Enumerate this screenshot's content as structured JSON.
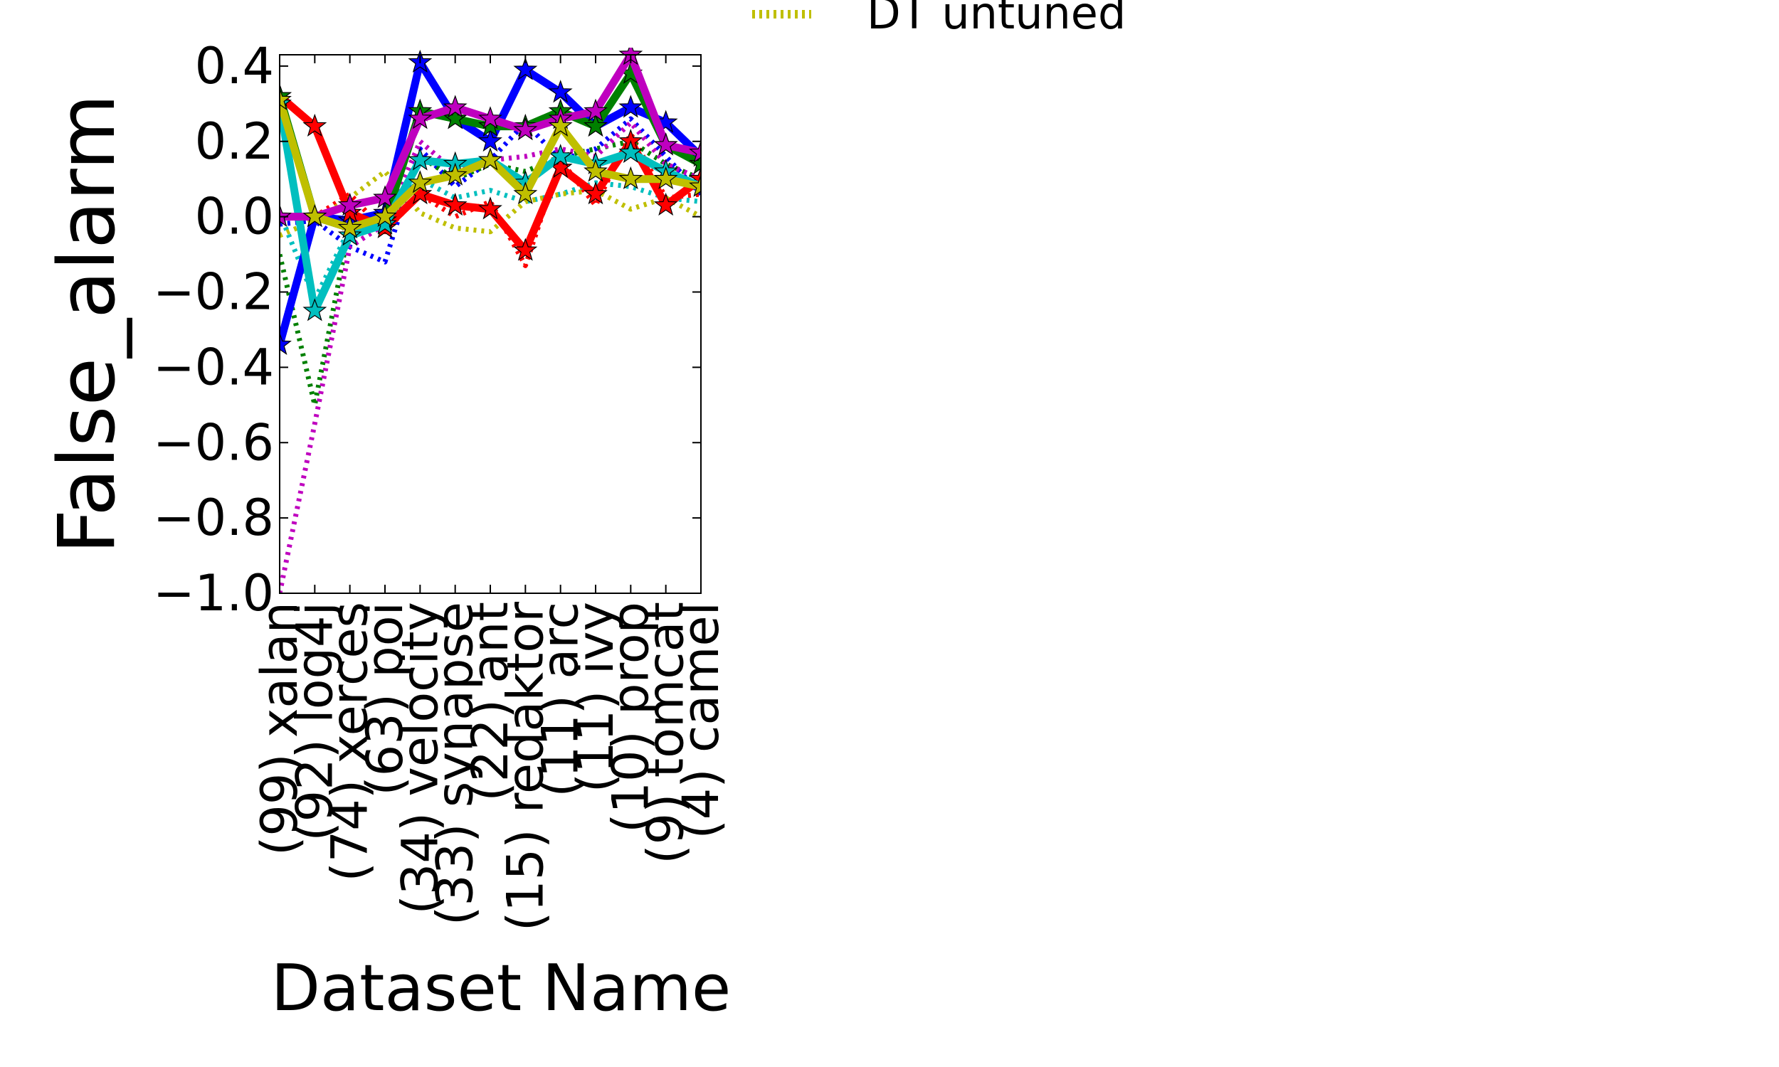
{
  "chart_data": {
    "type": "line",
    "xlabel": "Dataset Name",
    "ylabel": "False_alarm",
    "ylim": [
      -1.0,
      0.43
    ],
    "yticks": [
      0.4,
      0.2,
      0.0,
      -0.2,
      -0.4,
      -0.6,
      -0.8,
      -1.0
    ],
    "ytick_labels": [
      "0.4",
      "0.2",
      "0.0",
      "−0.2",
      "−0.4",
      "−0.6",
      "−0.8",
      "−1.0"
    ],
    "categories": [
      "(99) xalan",
      "(92) log4j",
      "(74) xerces",
      "(63) poi",
      "(34) velocity",
      "(33) synapse",
      "(22) ant",
      "(15) redaktor",
      "(11) arc",
      "(11) ivy",
      "(10) prop",
      "(9) tomcat",
      "(4) camel"
    ],
    "grid": false,
    "legend": {
      "position": "top-right, partially clipped above the figure",
      "visible_entries": [
        "DT untuned"
      ]
    },
    "series": [
      {
        "name": "",
        "color": "#0000ff",
        "style": "solid",
        "marker": true,
        "values": [
          -0.34,
          0.0,
          -0.01,
          0.01,
          0.41,
          0.26,
          0.2,
          0.39,
          0.33,
          0.24,
          0.29,
          0.25,
          0.16
        ]
      },
      {
        "name": "",
        "color": "#0000ff",
        "style": "dotted",
        "marker": false,
        "values": [
          -0.02,
          -0.01,
          -0.08,
          -0.12,
          0.18,
          0.08,
          0.15,
          0.25,
          0.15,
          0.18,
          0.26,
          0.16,
          0.06
        ]
      },
      {
        "name": "",
        "color": "#ff0000",
        "style": "solid",
        "marker": true,
        "values": [
          0.32,
          0.24,
          0.01,
          -0.03,
          0.06,
          0.03,
          0.02,
          -0.09,
          0.13,
          0.06,
          0.2,
          0.03,
          0.1
        ]
      },
      {
        "name": "",
        "color": "#ff0000",
        "style": "dotted",
        "marker": false,
        "values": [
          0.3,
          0.0,
          0.06,
          -0.04,
          0.06,
          0.0,
          0.04,
          -0.13,
          0.15,
          0.03,
          0.22,
          0.05,
          0.06
        ]
      },
      {
        "name": "",
        "color": "#008000",
        "style": "solid",
        "marker": true,
        "values": [
          0.32,
          0.0,
          -0.03,
          -0.01,
          0.28,
          0.26,
          0.24,
          0.24,
          0.28,
          0.24,
          0.38,
          0.19,
          0.14
        ]
      },
      {
        "name": "",
        "color": "#008000",
        "style": "dotted",
        "marker": false,
        "values": [
          -0.1,
          -0.5,
          -0.02,
          -0.04,
          0.16,
          0.1,
          0.14,
          0.12,
          0.16,
          0.18,
          0.2,
          0.14,
          0.1
        ]
      },
      {
        "name": "",
        "color": "#00bfbf",
        "style": "solid",
        "marker": true,
        "values": [
          0.3,
          -0.25,
          -0.05,
          -0.02,
          0.15,
          0.14,
          0.15,
          0.09,
          0.16,
          0.14,
          0.17,
          0.12,
          0.08
        ]
      },
      {
        "name": "",
        "color": "#00bfbf",
        "style": "dotted",
        "marker": false,
        "values": [
          0.01,
          -0.22,
          -0.03,
          0.0,
          0.1,
          0.05,
          0.07,
          0.04,
          0.06,
          0.09,
          0.08,
          0.05,
          0.04
        ]
      },
      {
        "name": "",
        "color": "#bf00bf",
        "style": "solid",
        "marker": true,
        "values": [
          0.0,
          0.0,
          0.03,
          0.05,
          0.26,
          0.29,
          0.26,
          0.23,
          0.26,
          0.28,
          0.43,
          0.19,
          0.17
        ]
      },
      {
        "name": "",
        "color": "#bf00bf",
        "style": "dotted",
        "marker": false,
        "values": [
          -1.0,
          -0.55,
          -0.08,
          -0.02,
          0.2,
          0.12,
          0.15,
          0.16,
          0.18,
          0.16,
          0.25,
          0.14,
          0.1
        ]
      },
      {
        "name": "",
        "color": "#bfbf00",
        "style": "solid",
        "marker": true,
        "values": [
          0.31,
          0.0,
          -0.03,
          0.0,
          0.09,
          0.11,
          0.15,
          0.06,
          0.24,
          0.12,
          0.1,
          0.1,
          0.08
        ]
      },
      {
        "name": "DT untuned",
        "color": "#bfbf00",
        "style": "dotted",
        "marker": false,
        "values": [
          -0.05,
          -0.01,
          0.05,
          0.12,
          0.01,
          -0.03,
          -0.04,
          0.04,
          0.06,
          0.07,
          0.02,
          0.05,
          0.0
        ]
      }
    ]
  }
}
